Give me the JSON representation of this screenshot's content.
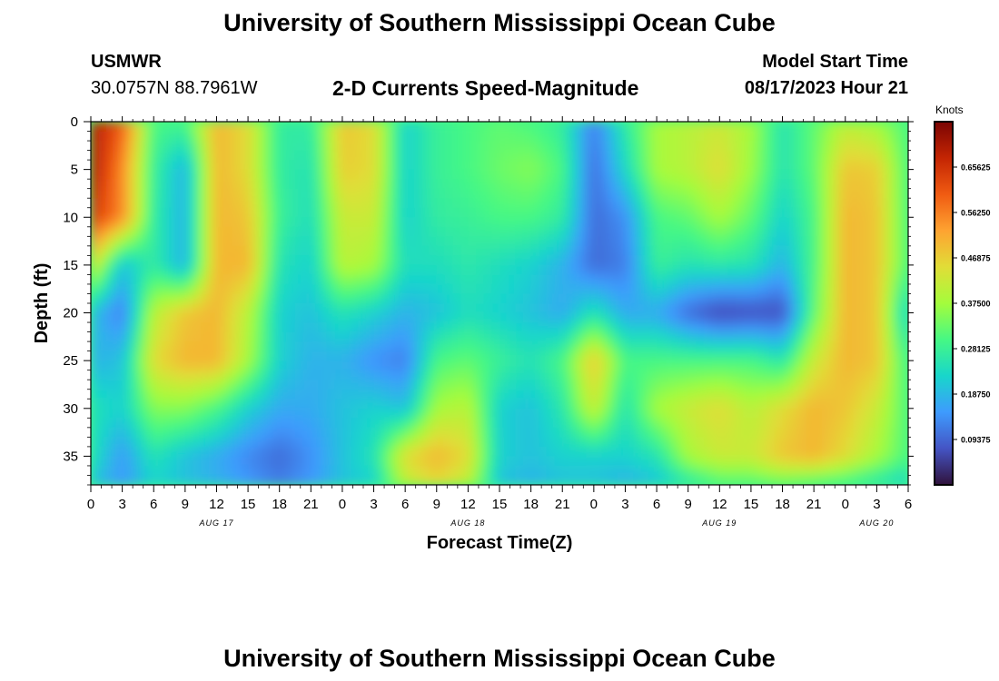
{
  "header": {
    "title": "University of Southern Mississippi Ocean Cube",
    "station_id": "USMWR",
    "coordinates": "30.0757N  88.7961W",
    "subtitle": "2-D Currents Speed-Magnitude",
    "model_label": "Model Start Time",
    "model_time": "08/17/2023 Hour 21"
  },
  "footer": {
    "title": "University of Southern Mississippi Ocean Cube"
  },
  "chart_data": {
    "type": "heatmap",
    "title": "2-D Currents Speed-Magnitude",
    "xlabel": "Forecast Time(Z)",
    "ylabel": "Depth (ft)",
    "x_tick_labels": [
      "0",
      "3",
      "6",
      "9",
      "12",
      "15",
      "18",
      "21",
      "0",
      "3",
      "6",
      "9",
      "12",
      "15",
      "18",
      "21",
      "0",
      "3",
      "6",
      "9",
      "12",
      "15",
      "18",
      "21",
      "0",
      "3",
      "6"
    ],
    "x_hours_range": [
      0,
      78
    ],
    "date_labels": [
      {
        "label": "AUG 17",
        "hour": 12
      },
      {
        "label": "AUG 18",
        "hour": 36
      },
      {
        "label": "AUG 19",
        "hour": 60
      },
      {
        "label": "AUG 20",
        "hour": 75
      }
    ],
    "y_ticks": [
      0,
      5,
      10,
      15,
      20,
      25,
      30,
      35
    ],
    "y_range": [
      0,
      38
    ],
    "colorbar": {
      "label": "Knots",
      "ticks": [
        "0.65625",
        "0.56250",
        "0.46875",
        "0.37500",
        "0.28125",
        "0.18750",
        "0.09375"
      ],
      "range": [
        0.0,
        0.75
      ],
      "colors": [
        "#30123b",
        "#4454c4",
        "#3e9bfe",
        "#18d6cb",
        "#46f884",
        "#a4fc3c",
        "#e1dd37",
        "#fea331",
        "#f05b12",
        "#c42503",
        "#7a0403"
      ]
    },
    "grid": {
      "times": [
        0,
        3,
        6,
        9,
        12,
        15,
        18,
        21,
        24,
        27,
        30,
        33,
        36,
        39,
        42,
        45,
        48,
        51,
        54,
        57,
        60,
        63,
        66,
        69,
        72,
        75,
        78
      ],
      "depths": [
        0,
        5,
        10,
        15,
        20,
        25,
        30,
        35,
        38
      ],
      "values": [
        [
          0.7,
          0.6,
          0.3,
          0.3,
          0.5,
          0.45,
          0.27,
          0.27,
          0.48,
          0.45,
          0.22,
          0.28,
          0.3,
          0.32,
          0.3,
          0.27,
          0.12,
          0.27,
          0.38,
          0.4,
          0.42,
          0.38,
          0.25,
          0.32,
          0.4,
          0.37,
          0.3
        ],
        [
          0.7,
          0.55,
          0.28,
          0.18,
          0.5,
          0.45,
          0.27,
          0.25,
          0.47,
          0.45,
          0.22,
          0.28,
          0.3,
          0.33,
          0.35,
          0.3,
          0.1,
          0.23,
          0.38,
          0.4,
          0.45,
          0.37,
          0.25,
          0.32,
          0.48,
          0.47,
          0.3
        ],
        [
          0.65,
          0.55,
          0.27,
          0.18,
          0.5,
          0.48,
          0.28,
          0.24,
          0.42,
          0.42,
          0.22,
          0.27,
          0.28,
          0.3,
          0.3,
          0.27,
          0.1,
          0.14,
          0.3,
          0.32,
          0.38,
          0.32,
          0.22,
          0.3,
          0.5,
          0.48,
          0.3
        ],
        [
          0.45,
          0.2,
          0.27,
          0.18,
          0.5,
          0.5,
          0.25,
          0.22,
          0.4,
          0.38,
          0.24,
          0.24,
          0.26,
          0.24,
          0.22,
          0.18,
          0.1,
          0.12,
          0.28,
          0.25,
          0.26,
          0.25,
          0.18,
          0.3,
          0.5,
          0.48,
          0.3
        ],
        [
          0.2,
          0.12,
          0.4,
          0.48,
          0.5,
          0.4,
          0.22,
          0.2,
          0.25,
          0.22,
          0.18,
          0.2,
          0.24,
          0.22,
          0.2,
          0.17,
          0.25,
          0.17,
          0.17,
          0.1,
          0.06,
          0.07,
          0.07,
          0.32,
          0.5,
          0.48,
          0.2
        ],
        [
          0.18,
          0.2,
          0.45,
          0.5,
          0.5,
          0.38,
          0.22,
          0.18,
          0.18,
          0.14,
          0.12,
          0.3,
          0.32,
          0.28,
          0.25,
          0.3,
          0.48,
          0.3,
          0.3,
          0.3,
          0.3,
          0.3,
          0.26,
          0.42,
          0.5,
          0.48,
          0.28
        ],
        [
          0.25,
          0.22,
          0.35,
          0.35,
          0.3,
          0.22,
          0.17,
          0.17,
          0.2,
          0.22,
          0.2,
          0.38,
          0.4,
          0.22,
          0.2,
          0.26,
          0.42,
          0.25,
          0.38,
          0.42,
          0.45,
          0.4,
          0.45,
          0.5,
          0.48,
          0.42,
          0.3
        ],
        [
          0.25,
          0.15,
          0.25,
          0.2,
          0.17,
          0.13,
          0.1,
          0.14,
          0.2,
          0.25,
          0.45,
          0.5,
          0.45,
          0.22,
          0.2,
          0.22,
          0.22,
          0.22,
          0.25,
          0.38,
          0.42,
          0.42,
          0.48,
          0.5,
          0.45,
          0.38,
          0.3
        ],
        [
          0.2,
          0.15,
          0.22,
          0.2,
          0.18,
          0.15,
          0.12,
          0.15,
          0.2,
          0.22,
          0.4,
          0.45,
          0.4,
          0.2,
          0.18,
          0.2,
          0.2,
          0.18,
          0.2,
          0.25,
          0.3,
          0.3,
          0.32,
          0.3,
          0.28,
          0.25,
          0.22
        ]
      ]
    }
  }
}
